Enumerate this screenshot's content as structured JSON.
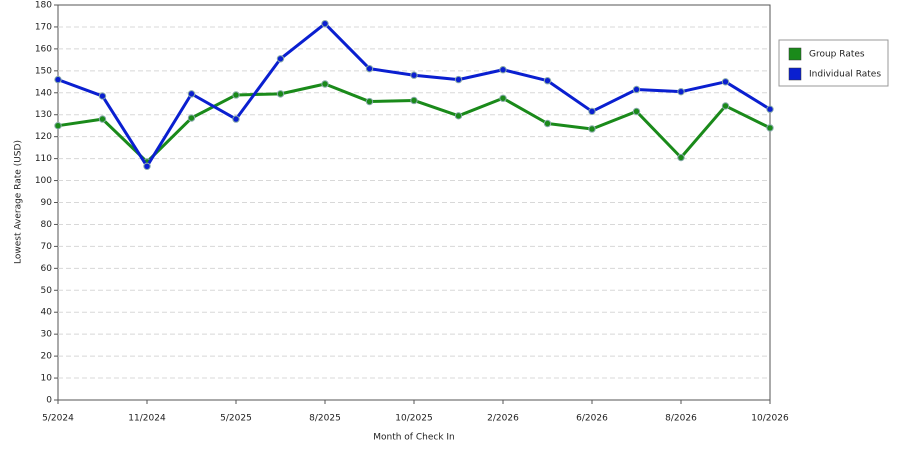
{
  "chart_data": {
    "type": "line",
    "x_label": "Month of Check In",
    "y_label": "Lowest Average Rate (USD)",
    "categories": [
      "5/2024",
      null,
      "11/2024",
      null,
      "5/2025",
      null,
      "8/2025",
      null,
      "10/2025",
      null,
      "2/2026",
      null,
      "6/2026",
      null,
      "8/2026",
      null,
      "10/2026"
    ],
    "series": [
      {
        "name": "Group Rates",
        "color": "#1a8a1a",
        "values": [
          125,
          128,
          108.5,
          128.5,
          139,
          139.5,
          144,
          136,
          136.5,
          129.5,
          137.5,
          126,
          123.5,
          131.5,
          110.5,
          134,
          124
        ]
      },
      {
        "name": "Individual Rates",
        "color": "#0a1fd0",
        "values": [
          146,
          138.5,
          106.5,
          139.5,
          128,
          155.5,
          171.5,
          151,
          148,
          146,
          150.5,
          145.5,
          131.5,
          141.5,
          140.5,
          145,
          132.5
        ]
      }
    ],
    "ylim": [
      0,
      180
    ],
    "yticks": [
      0,
      10,
      20,
      30,
      40,
      50,
      60,
      70,
      80,
      90,
      100,
      110,
      120,
      130,
      140,
      150,
      160,
      170,
      180
    ],
    "grid": true,
    "legend": "right"
  }
}
